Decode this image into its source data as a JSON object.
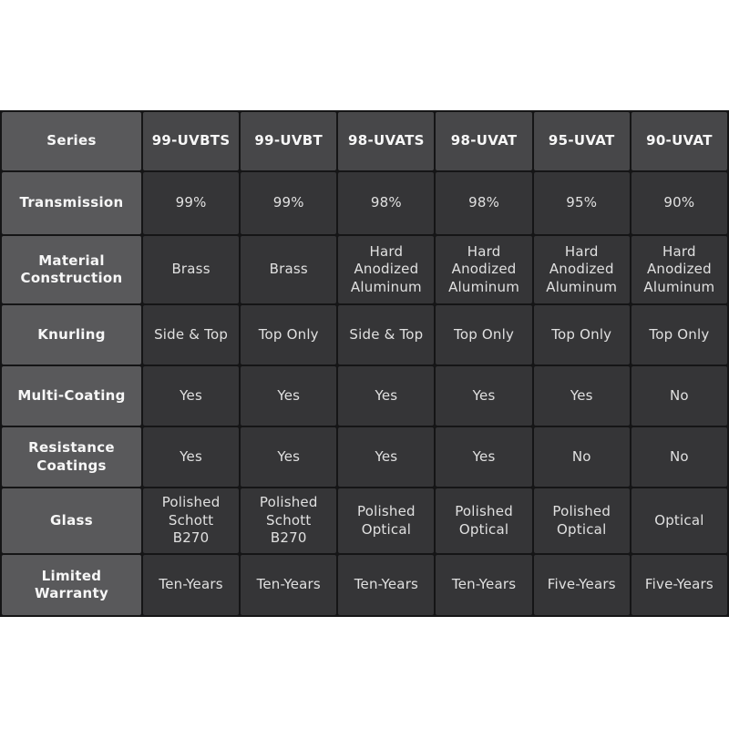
{
  "colors": {
    "page_background": "#ffffff",
    "row_header_background": "#59595b",
    "column_header_background": "#474749",
    "data_cell_background": "#353537",
    "grid_line": "#151516",
    "header_text": "#f7f7f7",
    "data_text": "#e0e0e0"
  },
  "chart_data": {
    "type": "table",
    "columns": [
      "99-UVBTS",
      "99-UVBT",
      "98-UVATS",
      "98-UVAT",
      "95-UVAT",
      "90-UVAT"
    ],
    "row_headers": [
      "Series",
      "Transmission",
      "Material Construction",
      "Knurling",
      "Multi-Coating",
      "Resistance Coatings",
      "Glass",
      "Limited Warranty"
    ],
    "rows": [
      {
        "label": "Series",
        "values": [
          "99-UVBTS",
          "99-UVBT",
          "98-UVATS",
          "98-UVAT",
          "95-UVAT",
          "90-UVAT"
        ]
      },
      {
        "label": "Transmission",
        "values": [
          "99%",
          "99%",
          "98%",
          "98%",
          "95%",
          "90%"
        ]
      },
      {
        "label": "Material Construction",
        "values": [
          "Brass",
          "Brass",
          "Hard Anodized Aluminum",
          "Hard Anodized Aluminum",
          "Hard Anodized Aluminum",
          "Hard Anodized Aluminum"
        ]
      },
      {
        "label": "Knurling",
        "values": [
          "Side & Top",
          "Top Only",
          "Side & Top",
          "Top Only",
          "Top Only",
          "Top Only"
        ]
      },
      {
        "label": "Multi-Coating",
        "values": [
          "Yes",
          "Yes",
          "Yes",
          "Yes",
          "Yes",
          "No"
        ]
      },
      {
        "label": "Resistance Coatings",
        "values": [
          "Yes",
          "Yes",
          "Yes",
          "Yes",
          "No",
          "No"
        ]
      },
      {
        "label": "Glass",
        "values": [
          "Polished Schott B270",
          "Polished Schott B270",
          "Polished Optical",
          "Polished Optical",
          "Polished Optical",
          "Optical"
        ]
      },
      {
        "label": "Limited Warranty",
        "values": [
          "Ten-Years",
          "Ten-Years",
          "Ten-Years",
          "Ten-Years",
          "Five-Years",
          "Five-Years"
        ]
      }
    ]
  }
}
